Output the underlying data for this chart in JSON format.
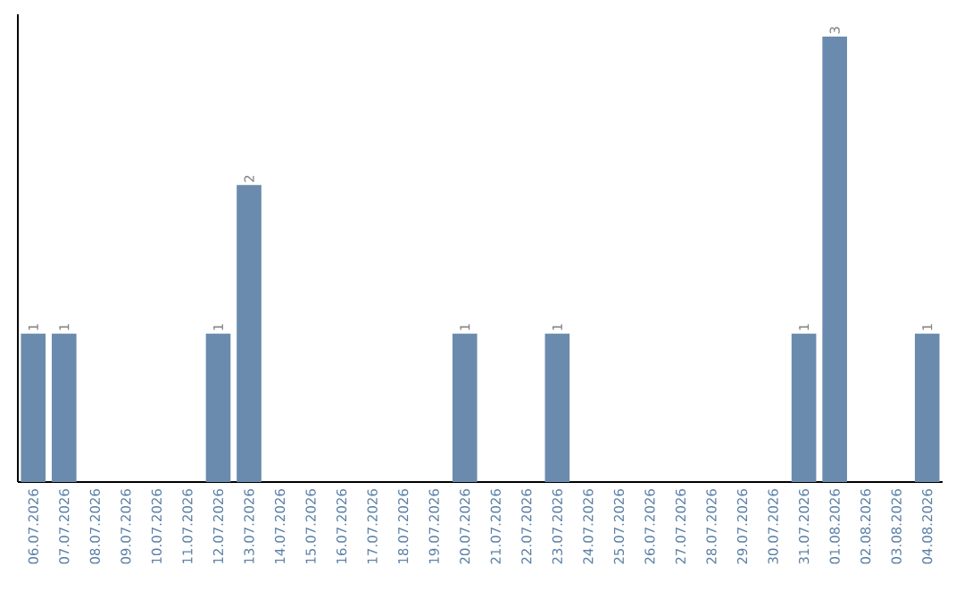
{
  "chart_data": {
    "type": "bar",
    "categories": [
      "06.07.2026",
      "07.07.2026",
      "08.07.2026",
      "09.07.2026",
      "10.07.2026",
      "11.07.2026",
      "12.07.2026",
      "13.07.2026",
      "14.07.2026",
      "15.07.2026",
      "16.07.2026",
      "17.07.2026",
      "18.07.2026",
      "19.07.2026",
      "20.07.2026",
      "21.07.2026",
      "22.07.2026",
      "23.07.2026",
      "24.07.2026",
      "25.07.2026",
      "26.07.2026",
      "27.07.2026",
      "28.07.2026",
      "29.07.2026",
      "30.07.2026",
      "31.07.2026",
      "01.08.2026",
      "02.08.2026",
      "03.08.2026",
      "04.08.2026"
    ],
    "values": [
      1,
      1,
      0,
      0,
      0,
      0,
      1,
      2,
      0,
      0,
      0,
      0,
      0,
      0,
      1,
      0,
      0,
      1,
      0,
      0,
      0,
      0,
      0,
      0,
      0,
      1,
      3,
      0,
      0,
      1
    ],
    "value_labels": [
      "1",
      "1",
      null,
      null,
      null,
      null,
      "1",
      "2",
      null,
      null,
      null,
      null,
      null,
      null,
      "1",
      null,
      null,
      "1",
      null,
      null,
      null,
      null,
      null,
      null,
      null,
      "1",
      "3",
      null,
      null,
      "1"
    ],
    "color": "#6a8bad",
    "tick_labels": "x"
  }
}
